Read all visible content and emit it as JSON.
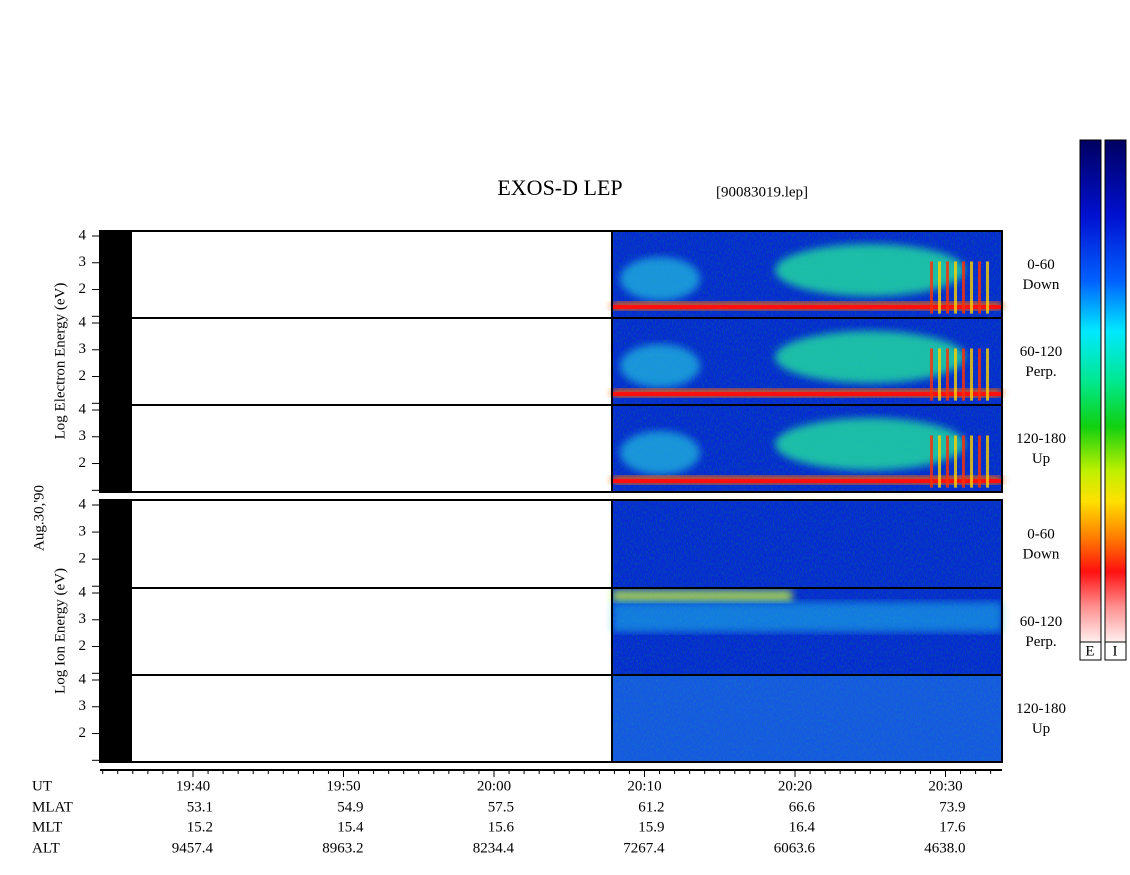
{
  "title": "EXOS-D LEP",
  "file": "[90083019.lep]",
  "date": "Aug.30,'90",
  "electron_axis_label": "Log  Electron  Energy (eV)",
  "ion_axis_label": "Log  Ion  Energy (eV)",
  "energy_ticks": [
    "4",
    "3",
    "2"
  ],
  "electron_panels": [
    [
      "0-60",
      "Down"
    ],
    [
      "60-120",
      "Perp."
    ],
    [
      "120-180",
      "Up"
    ]
  ],
  "ion_panels": [
    [
      "0-60",
      "Down"
    ],
    [
      "60-120",
      "Perp."
    ],
    [
      "120-180",
      "Up"
    ]
  ],
  "colorbar_labels": [
    "E",
    "I"
  ],
  "time_axis": {
    "rows": [
      "UT",
      "MLAT",
      "MLT",
      "ALT"
    ],
    "columns": [
      [
        "19:40",
        "53.1",
        "15.2",
        "9457.4"
      ],
      [
        "19:50",
        "54.9",
        "15.4",
        "8963.2"
      ],
      [
        "20:00",
        "57.5",
        "15.6",
        "8234.4"
      ],
      [
        "20:10",
        "61.2",
        "15.9",
        "7267.4"
      ],
      [
        "20:20",
        "66.6",
        "16.4",
        "6063.6"
      ],
      [
        "20:30",
        "73.9",
        "17.6",
        "4638.0"
      ]
    ]
  }
}
